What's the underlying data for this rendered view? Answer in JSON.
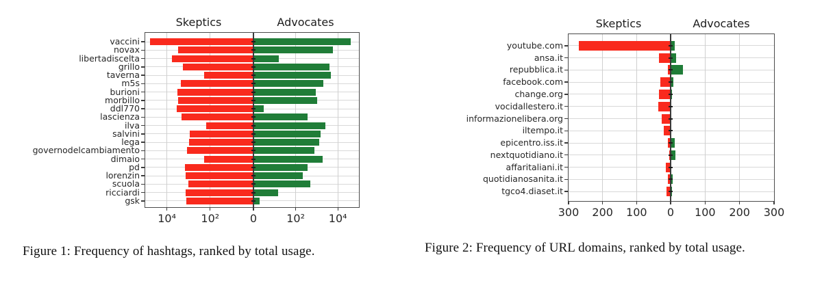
{
  "figures": [
    {
      "caption": "Figure 1: Frequency of hashtags, ranked by total usage."
    },
    {
      "caption": "Figure 2: Frequency of URL domains, ranked by total usage."
    }
  ],
  "colors": {
    "skeptics_red": "#f92a1d",
    "advocates_green": "#207d38",
    "grid": "#d8d8d8",
    "zero_line": "#3a3a3a",
    "frame": "#4a4a4a",
    "text": "#262626"
  },
  "chart_data": [
    {
      "type": "bar",
      "variant": "diverging-horizontal",
      "header_left": "Skeptics",
      "header_right": "Advocates",
      "xscale": "symlog",
      "xlim": [
        -100000,
        100000
      ],
      "xtick_values": [
        -10000,
        -100,
        0,
        100,
        10000
      ],
      "xtick_labels": [
        "10⁴",
        "10²",
        "0",
        "10²",
        "10⁴"
      ],
      "grid": true,
      "legend_position": "column headers above plot",
      "categories": [
        "vaccini",
        "novax",
        "libertadiscelta",
        "grillo",
        "taverna",
        "m5s",
        "burioni",
        "morbillo",
        "ddl770",
        "lascienza",
        "ilva",
        "salvini",
        "lega",
        "governodelcambiamento",
        "dimaio",
        "pd",
        "lorenzin",
        "scuola",
        "ricciardi",
        "gsk"
      ],
      "series": [
        {
          "name": "Skeptics",
          "side": "left",
          "color": "#f92a1d",
          "values": [
            60000,
            3000,
            5800,
            1800,
            185,
            2300,
            3200,
            3000,
            3600,
            2100,
            150,
            900,
            960,
            1150,
            195,
            1450,
            1350,
            1000,
            1350,
            1250
          ]
        },
        {
          "name": "Advocates",
          "side": "right",
          "color": "#207d38",
          "values": [
            40000,
            5700,
            16,
            4100,
            4700,
            2100,
            930,
            1050,
            3,
            370,
            2600,
            1500,
            1350,
            780,
            1850,
            370,
            220,
            500,
            15,
            2
          ]
        }
      ]
    },
    {
      "type": "bar",
      "variant": "diverging-horizontal",
      "header_left": "Skeptics",
      "header_right": "Advocates",
      "xscale": "linear",
      "xlim": [
        -300,
        300
      ],
      "xtick_values": [
        -300,
        -200,
        -100,
        0,
        100,
        200,
        300
      ],
      "xtick_labels": [
        "300",
        "200",
        "100",
        "0",
        "100",
        "200",
        "300"
      ],
      "grid": true,
      "legend_position": "column headers above plot",
      "categories": [
        "youtube.com",
        "ansa.it",
        "repubblica.it",
        "facebook.com",
        "change.org",
        "vocidallestero.it",
        "informazionelibera.org",
        "iltempo.it",
        "epicentro.iss.it",
        "nextquotidiano.it",
        "affaritaliani.it",
        "quotidianosanita.it",
        "tgco4.diaset.it"
      ],
      "series": [
        {
          "name": "Skeptics",
          "side": "left",
          "color": "#f92a1d",
          "values": [
            270,
            35,
            9,
            31,
            35,
            36,
            26,
            21,
            9,
            4,
            14,
            8,
            13
          ]
        },
        {
          "name": "Advocates",
          "side": "right",
          "color": "#207d38",
          "values": [
            12,
            15,
            36,
            8,
            4,
            2,
            2,
            2,
            11,
            13,
            2,
            6,
            3
          ]
        }
      ]
    }
  ]
}
